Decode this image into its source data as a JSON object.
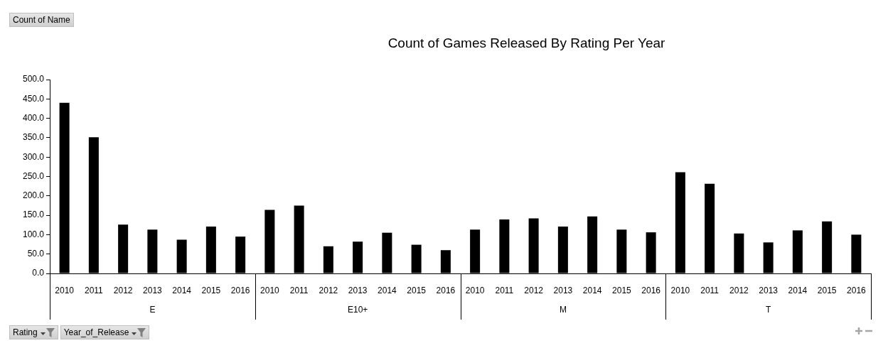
{
  "chart_data": {
    "type": "bar",
    "title": "Count of Games Released By Rating Per Year",
    "annotations": [
      "Count of Name",
      "E",
      "E10+",
      "M",
      "T",
      "Rating",
      "Year_of_Release"
    ],
    "categories": [
      "2010",
      "2011",
      "2012",
      "2013",
      "2014",
      "2015",
      "2016",
      "2010",
      "2011",
      "2012",
      "2013",
      "2014",
      "2015",
      "2016",
      "2010",
      "2011",
      "2012",
      "2013",
      "2014",
      "2015",
      "2016",
      "2010",
      "2011",
      "2012",
      "2013",
      "2014",
      "2015",
      "2016"
    ],
    "values": [
      440,
      351,
      126,
      113,
      87,
      121,
      95,
      164,
      175,
      70,
      82,
      105,
      74,
      60,
      113,
      139,
      142,
      121,
      147,
      113,
      106,
      261,
      231,
      103,
      80,
      111,
      134,
      100
    ],
    "color": "#000000",
    "ylim": [
      0,
      500
    ],
    "yticks": [
      {
        "value": 0,
        "label": "0.0"
      },
      {
        "value": 50,
        "label": "50.0"
      },
      {
        "value": 100,
        "label": "100.0"
      },
      {
        "value": 150,
        "label": "150.0"
      },
      {
        "value": 200,
        "label": "200.0"
      },
      {
        "value": 250,
        "label": "250.0"
      },
      {
        "value": 300,
        "label": "300.0"
      },
      {
        "value": 350,
        "label": "350.0"
      },
      {
        "value": 400,
        "label": "400.0"
      },
      {
        "value": 450,
        "label": "450.0"
      },
      {
        "value": 500,
        "label": "500.0"
      }
    ]
  }
}
